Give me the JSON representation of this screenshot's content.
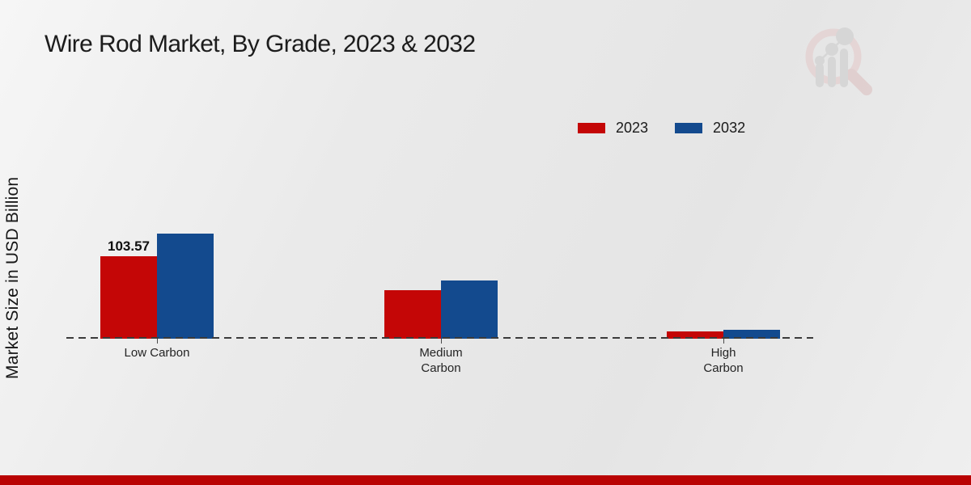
{
  "header": {
    "title": "Wire Rod Market, By Grade, 2023 & 2032"
  },
  "axes": {
    "y_label": "Market Size in USD Billion"
  },
  "legend": {
    "items": [
      {
        "label": "2023",
        "color": "#c40606"
      },
      {
        "label": "2032",
        "color": "#134a8e"
      }
    ]
  },
  "chart_data": {
    "type": "bar",
    "title": "Wire Rod Market, By Grade, 2023 & 2032",
    "ylabel": "Market Size in USD Billion",
    "categories": [
      "Low Carbon",
      "Medium\nCarbon",
      "High\nCarbon"
    ],
    "series": [
      {
        "name": "2023",
        "color": "#c40606",
        "values": [
          103.57,
          61.0,
          9.0
        ]
      },
      {
        "name": "2032",
        "color": "#134a8e",
        "values": [
          132.0,
          73.0,
          11.0
        ]
      }
    ],
    "annotations": [
      {
        "text": "103.57",
        "category_index": 0,
        "series_index": 0
      }
    ],
    "ylim": [
      0,
      140
    ],
    "grid": false,
    "value_axis_hidden": true,
    "baseline_style": "dashed",
    "legend_position": "top-right"
  },
  "branding": {
    "watermark_icon": "market-research-future-logo",
    "bottom_bar_color": "#b90303"
  }
}
